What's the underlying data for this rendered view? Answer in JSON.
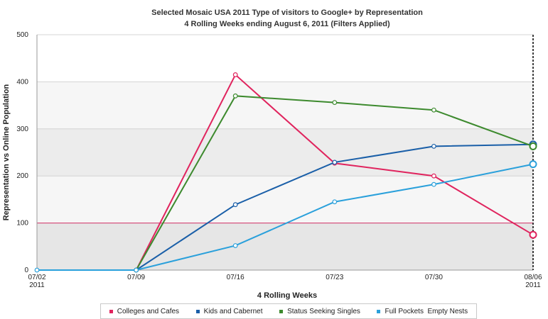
{
  "chart_data": {
    "type": "line",
    "title": "Selected Mosaic USA 2011 Type of visitors to Google+ by Representation",
    "subtitle": "4 Rolling Weeks ending August 6, 2011 (Filters Applied)",
    "xlabel": "4 Rolling Weeks",
    "ylabel": "Representation vs Online Population",
    "ylim": [
      0,
      500
    ],
    "yticks": [
      0,
      100,
      200,
      300,
      400,
      500
    ],
    "categories": [
      "07/02 2011",
      "07/09",
      "07/16",
      "07/23",
      "07/30",
      "08/06 2011"
    ],
    "x_tick_labels": [
      {
        "top": "07/02",
        "bottom": "2011"
      },
      {
        "top": "07/09",
        "bottom": ""
      },
      {
        "top": "07/16",
        "bottom": ""
      },
      {
        "top": "07/23",
        "bottom": ""
      },
      {
        "top": "07/30",
        "bottom": ""
      },
      {
        "top": "08/06",
        "bottom": "2011"
      }
    ],
    "reference_line": 100,
    "grid": true,
    "legend_position": "bottom",
    "series": [
      {
        "name": "Colleges and Cafes",
        "color": "#e0245e",
        "values": [
          null,
          0,
          415,
          227,
          200,
          75
        ]
      },
      {
        "name": "Kids and Cabernet",
        "color": "#1a5fa8",
        "values": [
          null,
          0,
          139,
          229,
          263,
          267
        ]
      },
      {
        "name": "Status Seeking Singles",
        "color": "#3d8a2e",
        "values": [
          null,
          0,
          370,
          356,
          340,
          263
        ]
      },
      {
        "name": "Full Pockets  Empty Nests",
        "color": "#2aa0db",
        "values": [
          0,
          0,
          52,
          145,
          182,
          225
        ]
      }
    ]
  }
}
